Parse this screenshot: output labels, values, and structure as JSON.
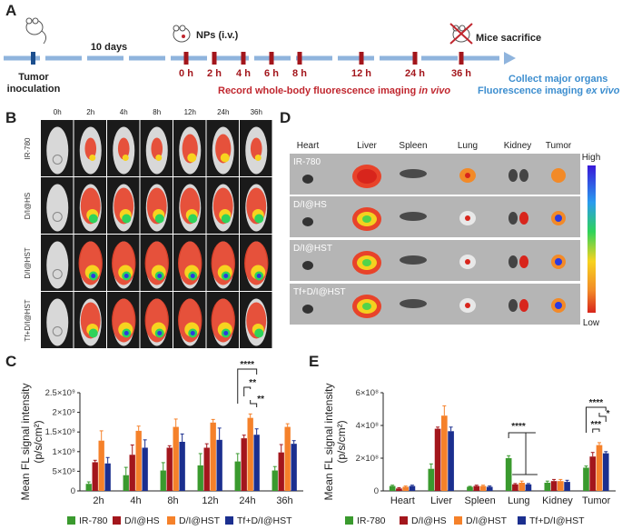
{
  "panel_labels": {
    "a": "A",
    "b": "B",
    "c": "C",
    "d": "D",
    "e": "E"
  },
  "timeline": {
    "tumor_inoculation": "Tumor\ninoculation",
    "days": "10 days",
    "injection": "NPs (i.v.)",
    "sacrifice": "Mice sacrifice",
    "times": [
      "0 h",
      "2 h",
      "4 h",
      "6 h",
      "8 h",
      "12 h",
      "24 h",
      "36 h"
    ],
    "record_text": "Record whole-body fluorescence imaging",
    "record_suffix": "in vivo",
    "collect_text": "Collect major organs",
    "fluor_text": "Fluorescence imaging",
    "fluor_suffix": "ex vivo"
  },
  "panel_b": {
    "time_labels": [
      "0h",
      "2h",
      "4h",
      "8h",
      "12h",
      "24h",
      "36h"
    ],
    "row_labels": [
      "IR-780",
      "D/I@HS",
      "D/I@HST",
      "Tf+D/I@HST"
    ]
  },
  "panel_d": {
    "organ_labels": [
      "Heart",
      "Liver",
      "Spleen",
      "Lung",
      "Kidney",
      "Tumor"
    ],
    "row_labels": [
      "IR-780",
      "D/I@HS",
      "D/I@HST",
      "Tf+D/I@HST"
    ],
    "scale_high": "High",
    "scale_low": "Low"
  },
  "colors": {
    "ir780": "#3a9a2e",
    "dihs": "#a3161c",
    "dihst": "#f5812a",
    "tfdihst": "#1b2f8f"
  },
  "chart_data": [
    {
      "type": "bar",
      "panel": "C",
      "ylabel": "Mean FL signal intensity\n(p/s/cm²)",
      "ylim": [
        0,
        2500000000.0
      ],
      "yticks": [
        "0",
        "5×10⁸",
        "1×10⁹",
        "1.5×10⁹",
        "2×10⁹",
        "2.5×10⁹"
      ],
      "categories": [
        "2h",
        "4h",
        "8h",
        "12h",
        "24h",
        "36h"
      ],
      "series": [
        {
          "name": "IR-780",
          "values": [
            180000000.0,
            400000000.0,
            520000000.0,
            650000000.0,
            750000000.0,
            520000000.0
          ],
          "errors": [
            50000000.0,
            200000000.0,
            200000000.0,
            300000000.0,
            200000000.0,
            100000000.0
          ]
        },
        {
          "name": "D/I@HS",
          "values": [
            730000000.0,
            920000000.0,
            1100000000.0,
            1100000000.0,
            1340000000.0,
            980000000.0
          ],
          "errors": [
            50000000.0,
            250000000.0,
            50000000.0,
            100000000.0,
            80000000.0,
            200000000.0
          ]
        },
        {
          "name": "D/I@HST",
          "values": [
            1280000000.0,
            1530000000.0,
            1630000000.0,
            1740000000.0,
            1860000000.0,
            1630000000.0
          ],
          "errors": [
            250000000.0,
            120000000.0,
            200000000.0,
            80000000.0,
            100000000.0,
            80000000.0
          ]
        },
        {
          "name": "Tf+D/I@HST",
          "values": [
            700000000.0,
            1100000000.0,
            1250000000.0,
            1300000000.0,
            1430000000.0,
            1200000000.0
          ],
          "errors": [
            150000000.0,
            200000000.0,
            200000000.0,
            300000000.0,
            150000000.0,
            80000000.0
          ]
        }
      ],
      "annotations": [
        "****",
        "**",
        "**"
      ]
    },
    {
      "type": "bar",
      "panel": "E",
      "ylabel": "Mean FL signal intensity\n(p/s/cm²)",
      "ylim": [
        0,
        600000000.0
      ],
      "yticks": [
        "0",
        "2×10⁸",
        "4×10⁸",
        "6×10⁸"
      ],
      "categories": [
        "Heart",
        "Liver",
        "Spleen",
        "Lung",
        "Kidney",
        "Tumor"
      ],
      "series": [
        {
          "name": "IR-780",
          "values": [
            30000000.0,
            135000000.0,
            25000000.0,
            200000000.0,
            50000000.0,
            142000000.0
          ],
          "errors": [
            5000000.0,
            30000000.0,
            3000000.0,
            15000000.0,
            10000000.0,
            10000000.0
          ]
        },
        {
          "name": "D/I@HS",
          "values": [
            15000000.0,
            380000000.0,
            30000000.0,
            40000000.0,
            60000000.0,
            210000000.0
          ],
          "errors": [
            5000000.0,
            10000000.0,
            5000000.0,
            5000000.0,
            10000000.0,
            25000000.0
          ]
        },
        {
          "name": "D/I@HST",
          "values": [
            25000000.0,
            460000000.0,
            30000000.0,
            50000000.0,
            60000000.0,
            280000000.0
          ],
          "errors": [
            5000000.0,
            60000000.0,
            5000000.0,
            10000000.0,
            10000000.0,
            15000000.0
          ]
        },
        {
          "name": "Tf+D/I@HST",
          "values": [
            30000000.0,
            365000000.0,
            25000000.0,
            40000000.0,
            55000000.0,
            230000000.0
          ],
          "errors": [
            5000000.0,
            25000000.0,
            5000000.0,
            5000000.0,
            10000000.0,
            10000000.0
          ]
        }
      ],
      "annotations": [
        "****",
        "****",
        "***",
        "*"
      ]
    }
  ]
}
